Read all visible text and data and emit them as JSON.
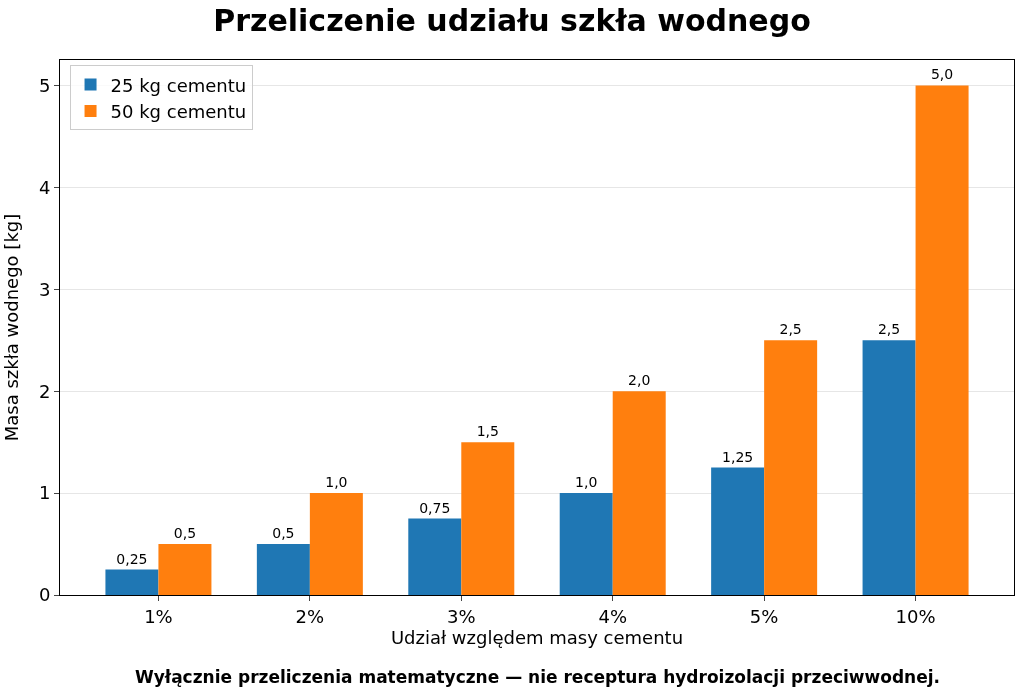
{
  "chart_data": {
    "type": "bar",
    "title": "Przeliczenie udziału szkła wodnego",
    "xlabel": "Udział względem masy cementu",
    "ylabel": "Masa szkła wodnego [kg]",
    "categories": [
      "1%",
      "2%",
      "3%",
      "4%",
      "5%",
      "10%"
    ],
    "series": [
      {
        "name": "25 kg cementu",
        "color": "#1f77b4",
        "values": [
          0.25,
          0.5,
          0.75,
          1.0,
          1.25,
          2.5
        ],
        "value_labels": [
          "0,25",
          "0,5",
          "0,75",
          "1,0",
          "1,25",
          "2,5"
        ]
      },
      {
        "name": "50 kg cementu",
        "color": "#ff7f0e",
        "values": [
          0.5,
          1.0,
          1.5,
          2.0,
          2.5,
          5.0
        ],
        "value_labels": [
          "0,5",
          "1,0",
          "1,5",
          "2,0",
          "2,5",
          "5,0"
        ]
      }
    ],
    "ylim": [
      0,
      5.25
    ],
    "yticks": [
      0,
      1,
      2,
      3,
      4,
      5
    ],
    "grid": "y",
    "legend": "top left",
    "annotations": [
      "Wyłącznie przeliczenia matematyczne — nie receptura hydroizolacji przeciwwodnej."
    ]
  }
}
